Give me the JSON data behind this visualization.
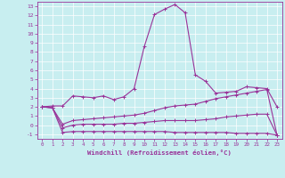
{
  "xlabel": "Windchill (Refroidissement éolien,°C)",
  "background_color": "#c8eef0",
  "line_color": "#993399",
  "xlim": [
    -0.5,
    23.5
  ],
  "ylim": [
    -1.5,
    13.5
  ],
  "xticks": [
    0,
    1,
    2,
    3,
    4,
    5,
    6,
    7,
    8,
    9,
    10,
    11,
    12,
    13,
    14,
    15,
    16,
    17,
    18,
    19,
    20,
    21,
    22,
    23
  ],
  "yticks": [
    -1,
    0,
    1,
    2,
    3,
    4,
    5,
    6,
    7,
    8,
    9,
    10,
    11,
    12,
    13
  ],
  "series": [
    [
      2.0,
      2.1,
      2.1,
      3.2,
      3.1,
      3.0,
      3.2,
      2.8,
      3.1,
      4.0,
      8.6,
      12.1,
      12.7,
      13.2,
      12.3,
      5.5,
      4.8,
      3.5,
      3.6,
      3.7,
      4.2,
      4.1,
      4.0,
      2.0
    ],
    [
      2.0,
      1.9,
      -0.8,
      -0.7,
      -0.7,
      -0.7,
      -0.7,
      -0.7,
      -0.7,
      -0.7,
      -0.7,
      -0.7,
      -0.7,
      -0.8,
      -0.8,
      -0.8,
      -0.8,
      -0.8,
      -0.8,
      -0.9,
      -0.9,
      -0.9,
      -0.9,
      -1.1
    ],
    [
      2.0,
      1.9,
      -0.3,
      0.0,
      0.1,
      0.1,
      0.1,
      0.1,
      0.2,
      0.2,
      0.3,
      0.4,
      0.5,
      0.5,
      0.5,
      0.5,
      0.6,
      0.7,
      0.9,
      1.0,
      1.1,
      1.2,
      1.2,
      -1.1
    ],
    [
      2.0,
      1.9,
      0.1,
      0.5,
      0.6,
      0.7,
      0.8,
      0.9,
      1.0,
      1.1,
      1.3,
      1.6,
      1.9,
      2.1,
      2.2,
      2.3,
      2.6,
      2.9,
      3.1,
      3.3,
      3.5,
      3.7,
      3.9,
      -1.1
    ]
  ]
}
